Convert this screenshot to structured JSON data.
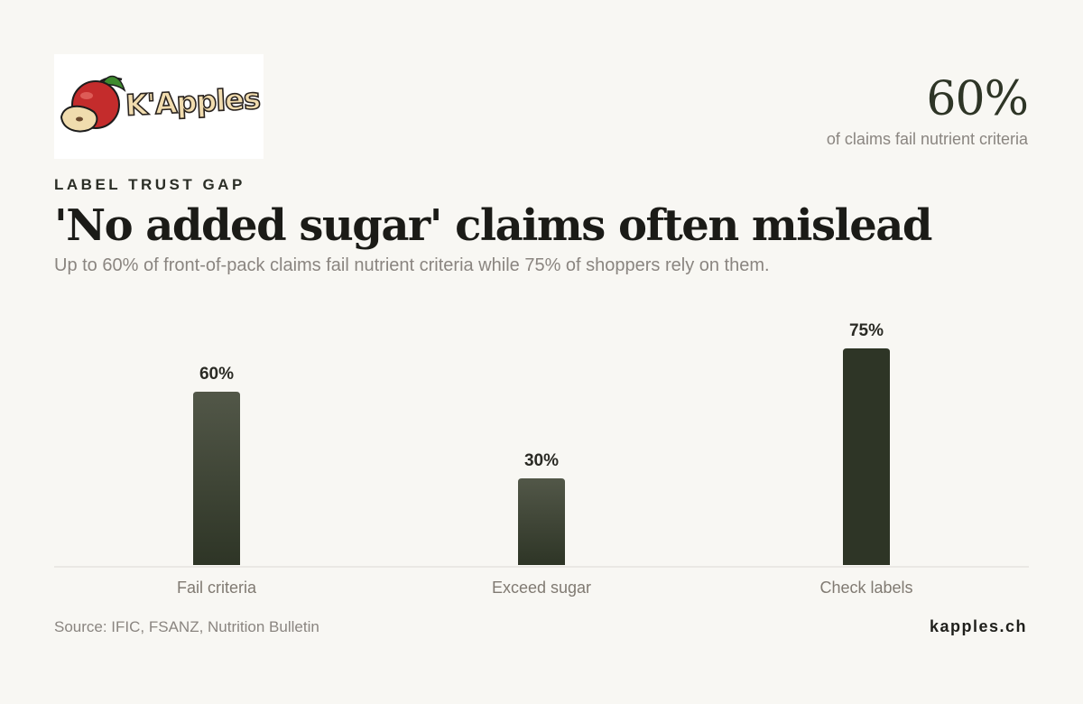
{
  "brand": {
    "logo_text": "K'Apples",
    "site": "kapples.ch"
  },
  "kpi": {
    "value": "60%",
    "label": "of claims fail nutrient criteria"
  },
  "header": {
    "eyebrow": "LABEL TRUST GAP",
    "title": "'No added sugar' claims often mislead",
    "subtitle": "Up to 60% of front-of-pack claims fail nutrient criteria while 75% of shoppers rely on them."
  },
  "footer": {
    "source": "Source: IFIC, FSANZ, Nutrition Bulletin"
  },
  "colors": {
    "bar": "#2e3526",
    "bar_light": "#525748",
    "baseline": "#dddad4"
  },
  "chart_data": {
    "type": "bar",
    "categories": [
      "Fail criteria",
      "Exceed sugar",
      "Check labels"
    ],
    "values": [
      60,
      30,
      75
    ],
    "value_labels": [
      "60%",
      "30%",
      "75%"
    ],
    "ylim": [
      0,
      75
    ],
    "grid": false
  }
}
